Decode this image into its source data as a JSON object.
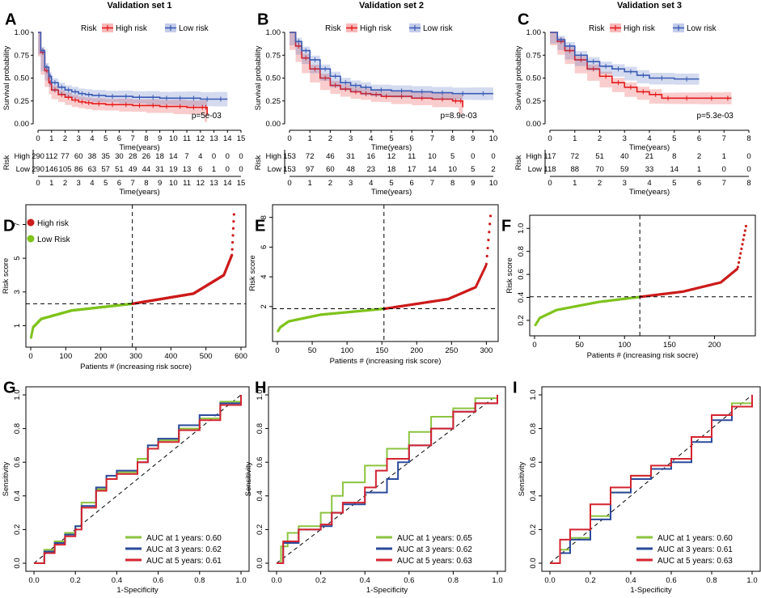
{
  "chart_data": [
    {
      "type": "line",
      "letter": "A",
      "title": "Validation set 1",
      "xlabel": "Time(years)",
      "ylabel": "Survival probability",
      "xlim": [
        0,
        15
      ],
      "ylim": [
        0,
        1
      ],
      "xticks": [
        0,
        1,
        2,
        3,
        4,
        5,
        6,
        7,
        8,
        9,
        10,
        11,
        12,
        13,
        14,
        15
      ],
      "yticks": [
        "0.00",
        "0.25",
        "0.50",
        "0.75",
        "1.00"
      ],
      "legend_title": "Risk",
      "legend": [
        "High risk",
        "Low risk"
      ],
      "pvalue": "p=5e-03",
      "series": [
        {
          "name": "High risk",
          "color": "#e41a1c",
          "x": [
            0,
            0.2,
            0.5,
            0.8,
            1,
            1.5,
            2,
            2.5,
            3,
            3.5,
            4,
            5,
            6,
            7,
            8,
            9,
            10,
            11,
            12,
            12.3,
            12.5
          ],
          "y": [
            1,
            0.78,
            0.58,
            0.45,
            0.37,
            0.32,
            0.29,
            0.26,
            0.24,
            0.23,
            0.22,
            0.21,
            0.21,
            0.2,
            0.2,
            0.19,
            0.19,
            0.18,
            0.18,
            0.18,
            0.1
          ]
        },
        {
          "name": "Low risk",
          "color": "#3b5bb5",
          "x": [
            0,
            0.2,
            0.5,
            0.8,
            1,
            1.5,
            2,
            2.5,
            3,
            3.5,
            4,
            5,
            6,
            7,
            8,
            9,
            10,
            11,
            12,
            13,
            14
          ],
          "y": [
            1,
            0.8,
            0.62,
            0.52,
            0.45,
            0.4,
            0.37,
            0.35,
            0.33,
            0.32,
            0.31,
            0.3,
            0.3,
            0.29,
            0.29,
            0.28,
            0.28,
            0.28,
            0.27,
            0.27,
            0.27
          ]
        }
      ],
      "risk_table": {
        "title": "Risk",
        "xlabel": "Time(years)",
        "rows": [
          {
            "label": "High",
            "color": "#e41a1c",
            "counts": [
              "290",
              "112",
              "77",
              "60",
              "38",
              "35",
              "30",
              "28",
              "26",
              "18",
              "14",
              "7",
              "4",
              "0",
              "0",
              "0"
            ]
          },
          {
            "label": "Low",
            "color": "#3b5bb5",
            "counts": [
              "290",
              "146",
              "105",
              "86",
              "63",
              "57",
              "51",
              "49",
              "44",
              "31",
              "19",
              "13",
              "6",
              "1",
              "0",
              "0"
            ]
          }
        ]
      }
    },
    {
      "type": "line",
      "letter": "B",
      "title": "Validation set 2",
      "xlabel": "Time(years)",
      "ylabel": "Survival probability",
      "xlim": [
        0,
        10
      ],
      "ylim": [
        0,
        1
      ],
      "xticks": [
        0,
        1,
        2,
        3,
        4,
        5,
        6,
        7,
        8,
        9,
        10
      ],
      "yticks": [
        "0.00",
        "0.25",
        "0.50",
        "0.75",
        "1.00"
      ],
      "legend_title": "Risk",
      "legend": [
        "High risk",
        "Low risk"
      ],
      "pvalue": "p=8.9e-03",
      "series": [
        {
          "name": "High risk",
          "color": "#e41a1c",
          "x": [
            0,
            0.3,
            0.6,
            1,
            1.5,
            2,
            2.5,
            3,
            3.5,
            4,
            4.5,
            5,
            6,
            7,
            8,
            8.3,
            8.5
          ],
          "y": [
            1,
            0.85,
            0.72,
            0.6,
            0.5,
            0.42,
            0.38,
            0.35,
            0.33,
            0.32,
            0.3,
            0.3,
            0.28,
            0.27,
            0.25,
            0.25,
            0.18
          ]
        },
        {
          "name": "Low risk",
          "color": "#3b5bb5",
          "x": [
            0,
            0.3,
            0.6,
            1,
            1.5,
            2,
            2.5,
            3,
            3.5,
            4,
            5,
            6,
            7,
            8,
            9,
            10
          ],
          "y": [
            1,
            0.9,
            0.8,
            0.7,
            0.6,
            0.52,
            0.45,
            0.42,
            0.4,
            0.37,
            0.36,
            0.35,
            0.34,
            0.33,
            0.33,
            0.33
          ]
        }
      ],
      "risk_table": {
        "title": "Risk",
        "xlabel": "Time(years)",
        "rows": [
          {
            "label": "High",
            "color": "#e41a1c",
            "counts": [
              "153",
              "72",
              "46",
              "31",
              "16",
              "12",
              "11",
              "10",
              "5",
              "0",
              "0"
            ]
          },
          {
            "label": "Low",
            "color": "#3b5bb5",
            "counts": [
              "153",
              "97",
              "60",
              "48",
              "23",
              "18",
              "17",
              "14",
              "10",
              "5",
              "2"
            ]
          }
        ]
      }
    },
    {
      "type": "line",
      "letter": "C",
      "title": "Validation set 3",
      "xlabel": "Time(years)",
      "ylabel": "Survival probability",
      "xlim": [
        0,
        8
      ],
      "ylim": [
        0,
        1
      ],
      "xticks": [
        0,
        1,
        2,
        3,
        4,
        5,
        6,
        7,
        8
      ],
      "yticks": [
        "0.00",
        "0.25",
        "0.50",
        "0.75",
        "1.00"
      ],
      "legend_title": "Risk",
      "legend": [
        "High risk",
        "Low risk"
      ],
      "pvalue": "p=5.3e-03",
      "series": [
        {
          "name": "High risk",
          "color": "#e41a1c",
          "x": [
            0,
            0.3,
            0.6,
            1,
            1.5,
            2,
            2.5,
            3,
            3.5,
            4,
            4.5,
            5,
            6,
            7,
            7.3
          ],
          "y": [
            1,
            0.9,
            0.8,
            0.7,
            0.6,
            0.52,
            0.45,
            0.4,
            0.35,
            0.32,
            0.28,
            0.28,
            0.28,
            0.28,
            0.28
          ]
        },
        {
          "name": "Low risk",
          "color": "#3b5bb5",
          "x": [
            0,
            0.3,
            0.6,
            1,
            1.5,
            2,
            2.5,
            3,
            3.5,
            4,
            5,
            6
          ],
          "y": [
            1,
            0.92,
            0.85,
            0.75,
            0.68,
            0.63,
            0.6,
            0.57,
            0.53,
            0.5,
            0.49,
            0.49
          ]
        }
      ],
      "risk_table": {
        "title": "Risk",
        "xlabel": "Time(years)",
        "rows": [
          {
            "label": "High",
            "color": "#e41a1c",
            "counts": [
              "117",
              "72",
              "51",
              "40",
              "21",
              "8",
              "2",
              "1",
              "0"
            ]
          },
          {
            "label": "Low",
            "color": "#3b5bb5",
            "counts": [
              "118",
              "88",
              "70",
              "59",
              "33",
              "14",
              "1",
              "0",
              "0"
            ]
          }
        ]
      }
    },
    {
      "type": "scatter",
      "letter": "D",
      "n": 580,
      "cutoff_index": 290,
      "cutoff_score": 2.3,
      "xlabel": "Patients # (increasing risk socre)",
      "ylabel": "Risk score",
      "xlim": [
        0,
        600
      ],
      "ylim": [
        0.3,
        7.6
      ],
      "xticks": [
        0,
        100,
        200,
        300,
        400,
        500,
        600
      ],
      "yticks": [
        1,
        3,
        5,
        7
      ],
      "legend": [
        "High risk",
        "Low Risk"
      ],
      "colors": {
        "high": "#cc1b1b",
        "low": "#7fc31c"
      },
      "score_profile": {
        "frac": [
          0,
          0.01,
          0.05,
          0.2,
          0.5,
          0.8,
          0.95,
          0.99,
          1
        ],
        "score": [
          0.3,
          0.9,
          1.4,
          1.9,
          2.3,
          2.9,
          4.0,
          5.2,
          7.6
        ]
      }
    },
    {
      "type": "scatter",
      "letter": "E",
      "n": 306,
      "cutoff_index": 153,
      "cutoff_score": 1.85,
      "xlabel": "Patients # (increasing risk score)",
      "ylabel": "Risk score",
      "xlim": [
        0,
        310
      ],
      "ylim": [
        0.3,
        8.2
      ],
      "xticks": [
        0,
        50,
        100,
        150,
        200,
        250,
        300
      ],
      "yticks": [
        2,
        4,
        6,
        8
      ],
      "colors": {
        "high": "#cc1b1b",
        "low": "#7fc31c"
      },
      "score_profile": {
        "frac": [
          0,
          0.01,
          0.05,
          0.2,
          0.5,
          0.8,
          0.93,
          0.98,
          1
        ],
        "score": [
          0.35,
          0.6,
          1.0,
          1.45,
          1.85,
          2.5,
          3.3,
          4.8,
          8.1
        ]
      }
    },
    {
      "type": "scatter",
      "letter": "F",
      "n": 235,
      "cutoff_index": 117,
      "cutoff_score": 0.405,
      "xlabel": "Patients # (increasing risk socre)",
      "ylabel": "Risk score",
      "xlim": [
        0,
        240
      ],
      "ylim": [
        0.15,
        1.03
      ],
      "xticks": [
        0,
        50,
        100,
        150,
        200
      ],
      "yticks": [
        "0.2",
        "0.4",
        "0.6",
        "0.8",
        "1.0"
      ],
      "colors": {
        "high": "#cc1b1b",
        "low": "#7fc31c"
      },
      "score_profile": {
        "frac": [
          0,
          0.02,
          0.1,
          0.3,
          0.5,
          0.7,
          0.88,
          0.96,
          1
        ],
        "score": [
          0.16,
          0.22,
          0.29,
          0.36,
          0.405,
          0.45,
          0.53,
          0.65,
          1.02
        ]
      }
    },
    {
      "type": "line",
      "letter": "G",
      "subtype": "roc",
      "xlabel": "1-Specificity",
      "ylabel": "Sensitivity",
      "xlim": [
        0,
        1
      ],
      "ylim": [
        0,
        1
      ],
      "xticks": [
        "0.0",
        "0.2",
        "0.4",
        "0.6",
        "0.8",
        "1.0"
      ],
      "yticks": [
        "0.0",
        "0.2",
        "0.4",
        "0.6",
        "0.8",
        "1.0"
      ],
      "series": [
        {
          "name": "AUC at 1 years: 0.60",
          "color": "#8cc43f",
          "x": [
            0,
            0.05,
            0.1,
            0.15,
            0.2,
            0.23,
            0.3,
            0.35,
            0.4,
            0.5,
            0.55,
            0.6,
            0.7,
            0.8,
            0.9,
            1
          ],
          "y": [
            0,
            0.08,
            0.13,
            0.18,
            0.22,
            0.36,
            0.44,
            0.5,
            0.54,
            0.62,
            0.7,
            0.73,
            0.8,
            0.86,
            0.96,
            1
          ]
        },
        {
          "name": "AUC at 3 years: 0.62",
          "color": "#2b4a9b",
          "x": [
            0,
            0.05,
            0.1,
            0.15,
            0.2,
            0.23,
            0.3,
            0.35,
            0.4,
            0.5,
            0.55,
            0.6,
            0.7,
            0.8,
            0.9,
            1
          ],
          "y": [
            0,
            0.07,
            0.12,
            0.17,
            0.22,
            0.34,
            0.45,
            0.52,
            0.55,
            0.6,
            0.7,
            0.74,
            0.82,
            0.88,
            0.95,
            1
          ]
        },
        {
          "name": "AUC at 5 years: 0.61",
          "color": "#d42430",
          "x": [
            0,
            0.05,
            0.1,
            0.15,
            0.2,
            0.23,
            0.3,
            0.35,
            0.4,
            0.5,
            0.55,
            0.6,
            0.7,
            0.8,
            0.9,
            1
          ],
          "y": [
            0,
            0.06,
            0.11,
            0.16,
            0.2,
            0.33,
            0.43,
            0.5,
            0.53,
            0.6,
            0.68,
            0.72,
            0.79,
            0.85,
            0.94,
            1
          ]
        }
      ]
    },
    {
      "type": "line",
      "letter": "H",
      "subtype": "roc",
      "xlabel": "1-Specificity",
      "ylabel": "Sensitivity",
      "xlim": [
        0,
        1
      ],
      "ylim": [
        0,
        1
      ],
      "xticks": [
        "0.0",
        "0.2",
        "0.4",
        "0.6",
        "0.8",
        "1.0"
      ],
      "yticks": [
        "0.0",
        "0.2",
        "0.4",
        "0.6",
        "0.8",
        "1.0"
      ],
      "series": [
        {
          "name": "AUC at 1 years: 0.65",
          "color": "#8cc43f",
          "x": [
            0,
            0.02,
            0.05,
            0.1,
            0.2,
            0.25,
            0.3,
            0.4,
            0.5,
            0.6,
            0.7,
            0.8,
            0.9,
            1
          ],
          "y": [
            0,
            0.1,
            0.18,
            0.22,
            0.3,
            0.4,
            0.48,
            0.58,
            0.68,
            0.78,
            0.87,
            0.92,
            0.98,
            1
          ]
        },
        {
          "name": "AUC at 3 years: 0.62",
          "color": "#2b4a9b",
          "x": [
            0,
            0.03,
            0.1,
            0.2,
            0.25,
            0.3,
            0.4,
            0.5,
            0.55,
            0.6,
            0.7,
            0.8,
            0.9,
            1
          ],
          "y": [
            0,
            0.12,
            0.2,
            0.22,
            0.3,
            0.35,
            0.42,
            0.5,
            0.6,
            0.7,
            0.8,
            0.9,
            0.95,
            1
          ]
        },
        {
          "name": "AUC at 5 years: 0.63",
          "color": "#d42430",
          "x": [
            0,
            0.03,
            0.1,
            0.2,
            0.25,
            0.3,
            0.4,
            0.45,
            0.5,
            0.6,
            0.7,
            0.8,
            0.9,
            1
          ],
          "y": [
            0,
            0.13,
            0.2,
            0.23,
            0.3,
            0.36,
            0.45,
            0.55,
            0.62,
            0.7,
            0.8,
            0.9,
            0.95,
            1
          ]
        }
      ]
    },
    {
      "type": "line",
      "letter": "I",
      "subtype": "roc",
      "xlabel": "1-Specificity",
      "ylabel": "Sensitivity",
      "xlim": [
        0,
        1
      ],
      "ylim": [
        0,
        1
      ],
      "xticks": [
        "0.0",
        "0.2",
        "0.4",
        "0.6",
        "0.8",
        "1.0"
      ],
      "yticks": [
        "0.0",
        "0.2",
        "0.4",
        "0.6",
        "0.8",
        "1.0"
      ],
      "series": [
        {
          "name": "AUC at 1 years: 0.60",
          "color": "#8cc43f",
          "x": [
            0,
            0.05,
            0.1,
            0.2,
            0.3,
            0.4,
            0.5,
            0.6,
            0.7,
            0.8,
            0.9,
            1
          ],
          "y": [
            0,
            0.08,
            0.15,
            0.28,
            0.42,
            0.52,
            0.56,
            0.62,
            0.75,
            0.88,
            0.95,
            1
          ]
        },
        {
          "name": "AUC at 3 years: 0.61",
          "color": "#2b4a9b",
          "x": [
            0,
            0.05,
            0.1,
            0.2,
            0.3,
            0.4,
            0.5,
            0.6,
            0.7,
            0.8,
            0.9,
            1
          ],
          "y": [
            0,
            0.06,
            0.14,
            0.26,
            0.42,
            0.5,
            0.56,
            0.6,
            0.72,
            0.85,
            0.93,
            1
          ]
        },
        {
          "name": "AUC at 5 years: 0.63",
          "color": "#d42430",
          "x": [
            0,
            0.05,
            0.1,
            0.2,
            0.3,
            0.4,
            0.5,
            0.6,
            0.7,
            0.8,
            0.9,
            1
          ],
          "y": [
            0,
            0.14,
            0.2,
            0.35,
            0.45,
            0.52,
            0.58,
            0.62,
            0.75,
            0.88,
            0.93,
            1
          ]
        }
      ]
    }
  ]
}
